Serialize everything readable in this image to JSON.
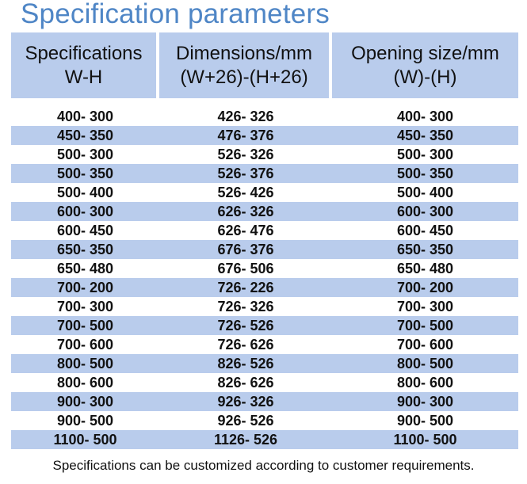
{
  "title": "Specification parameters",
  "headers": [
    {
      "line1": "Specifications",
      "line2": "W-H"
    },
    {
      "line1": "Dimensions/mm",
      "line2": "(W+26)-(H+26)"
    },
    {
      "line1": "Opening size/mm",
      "line2": "(W)-(H)"
    }
  ],
  "rows": [
    [
      "400- 300",
      "426- 326",
      "400- 300"
    ],
    [
      "450- 350",
      "476- 376",
      "450- 350"
    ],
    [
      "500- 300",
      "526- 326",
      "500- 300"
    ],
    [
      "500- 350",
      "526- 376",
      "500- 350"
    ],
    [
      "500- 400",
      "526- 426",
      "500- 400"
    ],
    [
      "600- 300",
      "626- 326",
      "600- 300"
    ],
    [
      "600- 450",
      "626- 476",
      "600- 450"
    ],
    [
      "650- 350",
      "676- 376",
      "650- 350"
    ],
    [
      "650- 480",
      "676- 506",
      "650- 480"
    ],
    [
      "700- 200",
      "726- 226",
      "700- 200"
    ],
    [
      "700- 300",
      "726- 326",
      "700- 300"
    ],
    [
      "700- 500",
      "726- 526",
      "700- 500"
    ],
    [
      "700- 600",
      "726- 626",
      "700- 600"
    ],
    [
      "800- 500",
      "826- 526",
      "800- 500"
    ],
    [
      "800- 600",
      "826- 626",
      "800- 600"
    ],
    [
      "900- 300",
      "926- 326",
      "900- 300"
    ],
    [
      "900- 500",
      "926- 526",
      "900- 500"
    ],
    [
      "1100- 500",
      "1126- 526",
      "1100- 500"
    ]
  ],
  "footer": "Specifications can be customized according to customer requirements.",
  "colors": {
    "title": "#4f86c6",
    "header_bg": "#b9ccec",
    "alt_row_bg": "#b9ccec"
  }
}
